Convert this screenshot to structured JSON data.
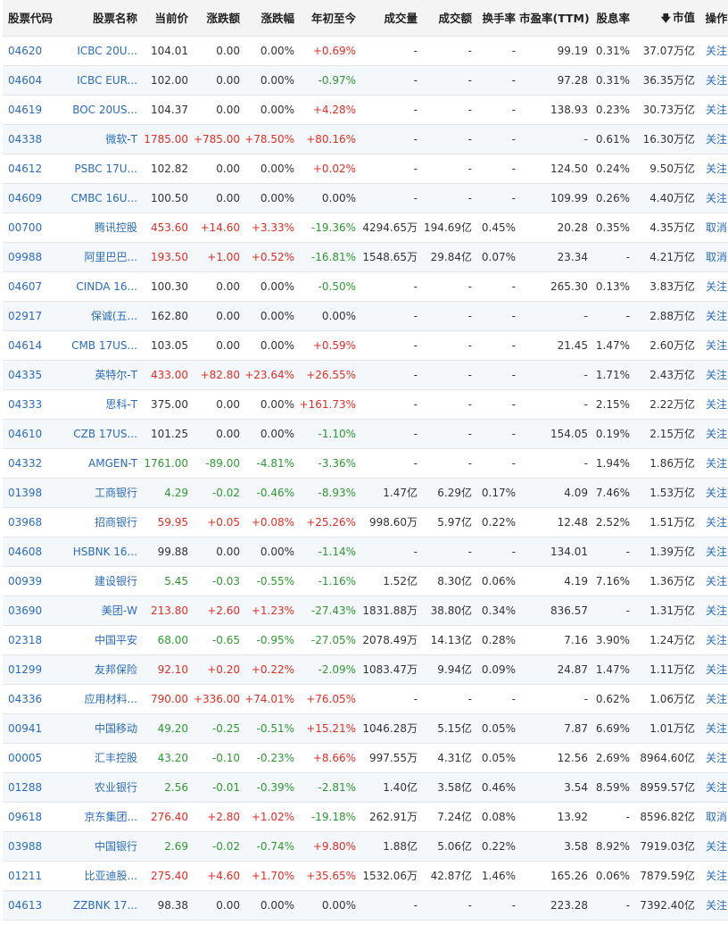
{
  "header": {
    "code": "股票代码",
    "name": "股票名称",
    "price": "当前价",
    "change": "涨跌额",
    "pct": "涨跌幅",
    "ytd": "年初至今",
    "volume": "成交量",
    "turnover": "成交额",
    "rate": "换手率",
    "pe": "市盈率(TTM)",
    "yield": "股息率",
    "mcap": "市值",
    "mcap_sort_icon": "arrow-down",
    "op": "操作"
  },
  "rows": [
    {
      "code": "04620",
      "name": "ICBC 20U...",
      "price": "104.01",
      "change": "0.00",
      "pct": "0.00%",
      "ytd": "+0.69%",
      "volume": "-",
      "turnover": "-",
      "rate": "-",
      "pe": "99.19",
      "yield": "0.31%",
      "mcap": "37.07万亿",
      "op": "关注",
      "price_dir": "flat",
      "change_dir": "flat",
      "pct_dir": "flat",
      "ytd_dir": "up"
    },
    {
      "code": "04604",
      "name": "ICBC EUR...",
      "price": "102.00",
      "change": "0.00",
      "pct": "0.00%",
      "ytd": "-0.97%",
      "volume": "-",
      "turnover": "-",
      "rate": "-",
      "pe": "97.28",
      "yield": "0.31%",
      "mcap": "36.35万亿",
      "op": "关注",
      "price_dir": "flat",
      "change_dir": "flat",
      "pct_dir": "flat",
      "ytd_dir": "down"
    },
    {
      "code": "04619",
      "name": "BOC 20US...",
      "price": "104.37",
      "change": "0.00",
      "pct": "0.00%",
      "ytd": "+4.28%",
      "volume": "-",
      "turnover": "-",
      "rate": "-",
      "pe": "138.93",
      "yield": "0.23%",
      "mcap": "30.73万亿",
      "op": "关注",
      "price_dir": "flat",
      "change_dir": "flat",
      "pct_dir": "flat",
      "ytd_dir": "up"
    },
    {
      "code": "04338",
      "name": "微软-T",
      "price": "1785.00",
      "change": "+785.00",
      "pct": "+78.50%",
      "ytd": "+80.16%",
      "volume": "-",
      "turnover": "-",
      "rate": "-",
      "pe": "-",
      "yield": "0.61%",
      "mcap": "16.30万亿",
      "op": "关注",
      "price_dir": "up",
      "change_dir": "up",
      "pct_dir": "up",
      "ytd_dir": "up"
    },
    {
      "code": "04612",
      "name": "PSBC 17U...",
      "price": "102.82",
      "change": "0.00",
      "pct": "0.00%",
      "ytd": "+0.02%",
      "volume": "-",
      "turnover": "-",
      "rate": "-",
      "pe": "124.50",
      "yield": "0.24%",
      "mcap": "9.50万亿",
      "op": "关注",
      "price_dir": "flat",
      "change_dir": "flat",
      "pct_dir": "flat",
      "ytd_dir": "up"
    },
    {
      "code": "04609",
      "name": "CMBC 16U...",
      "price": "100.50",
      "change": "0.00",
      "pct": "0.00%",
      "ytd": "0.00%",
      "volume": "-",
      "turnover": "-",
      "rate": "-",
      "pe": "109.99",
      "yield": "0.26%",
      "mcap": "4.40万亿",
      "op": "关注",
      "price_dir": "flat",
      "change_dir": "flat",
      "pct_dir": "flat",
      "ytd_dir": "flat"
    },
    {
      "code": "00700",
      "name": "腾讯控股",
      "price": "453.60",
      "change": "+14.60",
      "pct": "+3.33%",
      "ytd": "-19.36%",
      "volume": "4294.65万",
      "turnover": "194.69亿",
      "rate": "0.45%",
      "pe": "20.28",
      "yield": "0.35%",
      "mcap": "4.35万亿",
      "op": "取消",
      "price_dir": "up",
      "change_dir": "up",
      "pct_dir": "up",
      "ytd_dir": "down"
    },
    {
      "code": "09988",
      "name": "阿里巴巴...",
      "price": "193.50",
      "change": "+1.00",
      "pct": "+0.52%",
      "ytd": "-16.81%",
      "volume": "1548.65万",
      "turnover": "29.84亿",
      "rate": "0.07%",
      "pe": "23.34",
      "yield": "-",
      "mcap": "4.21万亿",
      "op": "取消",
      "price_dir": "up",
      "change_dir": "up",
      "pct_dir": "up",
      "ytd_dir": "down"
    },
    {
      "code": "04607",
      "name": "CINDA 16...",
      "price": "100.30",
      "change": "0.00",
      "pct": "0.00%",
      "ytd": "-0.50%",
      "volume": "-",
      "turnover": "-",
      "rate": "-",
      "pe": "265.30",
      "yield": "0.13%",
      "mcap": "3.83万亿",
      "op": "关注",
      "price_dir": "flat",
      "change_dir": "flat",
      "pct_dir": "flat",
      "ytd_dir": "down"
    },
    {
      "code": "02917",
      "name": "保诚(五...",
      "price": "162.80",
      "change": "0.00",
      "pct": "0.00%",
      "ytd": "0.00%",
      "volume": "-",
      "turnover": "-",
      "rate": "-",
      "pe": "-",
      "yield": "-",
      "mcap": "2.88万亿",
      "op": "关注",
      "price_dir": "flat",
      "change_dir": "flat",
      "pct_dir": "flat",
      "ytd_dir": "flat"
    },
    {
      "code": "04614",
      "name": "CMB 17US...",
      "price": "103.05",
      "change": "0.00",
      "pct": "0.00%",
      "ytd": "+0.59%",
      "volume": "-",
      "turnover": "-",
      "rate": "-",
      "pe": "21.45",
      "yield": "1.47%",
      "mcap": "2.60万亿",
      "op": "关注",
      "price_dir": "flat",
      "change_dir": "flat",
      "pct_dir": "flat",
      "ytd_dir": "up"
    },
    {
      "code": "04335",
      "name": "英特尔-T",
      "price": "433.00",
      "change": "+82.80",
      "pct": "+23.64%",
      "ytd": "+26.55%",
      "volume": "-",
      "turnover": "-",
      "rate": "-",
      "pe": "-",
      "yield": "1.71%",
      "mcap": "2.43万亿",
      "op": "关注",
      "price_dir": "up",
      "change_dir": "up",
      "pct_dir": "up",
      "ytd_dir": "up"
    },
    {
      "code": "04333",
      "name": "思科-T",
      "price": "375.00",
      "change": "0.00",
      "pct": "0.00%",
      "ytd": "+161.73%",
      "volume": "-",
      "turnover": "-",
      "rate": "-",
      "pe": "-",
      "yield": "2.15%",
      "mcap": "2.22万亿",
      "op": "关注",
      "price_dir": "flat",
      "change_dir": "flat",
      "pct_dir": "flat",
      "ytd_dir": "up"
    },
    {
      "code": "04610",
      "name": "CZB 17US...",
      "price": "101.25",
      "change": "0.00",
      "pct": "0.00%",
      "ytd": "-1.10%",
      "volume": "-",
      "turnover": "-",
      "rate": "-",
      "pe": "154.05",
      "yield": "0.19%",
      "mcap": "2.15万亿",
      "op": "关注",
      "price_dir": "flat",
      "change_dir": "flat",
      "pct_dir": "flat",
      "ytd_dir": "down"
    },
    {
      "code": "04332",
      "name": "AMGEN-T",
      "price": "1761.00",
      "change": "-89.00",
      "pct": "-4.81%",
      "ytd": "-3.36%",
      "volume": "-",
      "turnover": "-",
      "rate": "-",
      "pe": "-",
      "yield": "1.94%",
      "mcap": "1.86万亿",
      "op": "关注",
      "price_dir": "down",
      "change_dir": "down",
      "pct_dir": "down",
      "ytd_dir": "down"
    },
    {
      "code": "01398",
      "name": "工商银行",
      "price": "4.29",
      "change": "-0.02",
      "pct": "-0.46%",
      "ytd": "-8.93%",
      "volume": "1.47亿",
      "turnover": "6.29亿",
      "rate": "0.17%",
      "pe": "4.09",
      "yield": "7.46%",
      "mcap": "1.53万亿",
      "op": "关注",
      "price_dir": "down",
      "change_dir": "down",
      "pct_dir": "down",
      "ytd_dir": "down"
    },
    {
      "code": "03968",
      "name": "招商银行",
      "price": "59.95",
      "change": "+0.05",
      "pct": "+0.08%",
      "ytd": "+25.26%",
      "volume": "998.60万",
      "turnover": "5.97亿",
      "rate": "0.22%",
      "pe": "12.48",
      "yield": "2.52%",
      "mcap": "1.51万亿",
      "op": "关注",
      "price_dir": "up",
      "change_dir": "up",
      "pct_dir": "up",
      "ytd_dir": "up"
    },
    {
      "code": "04608",
      "name": "HSBNK 16...",
      "price": "99.88",
      "change": "0.00",
      "pct": "0.00%",
      "ytd": "-1.14%",
      "volume": "-",
      "turnover": "-",
      "rate": "-",
      "pe": "134.01",
      "yield": "-",
      "mcap": "1.39万亿",
      "op": "关注",
      "price_dir": "flat",
      "change_dir": "flat",
      "pct_dir": "flat",
      "ytd_dir": "down"
    },
    {
      "code": "00939",
      "name": "建设银行",
      "price": "5.45",
      "change": "-0.03",
      "pct": "-0.55%",
      "ytd": "-1.16%",
      "volume": "1.52亿",
      "turnover": "8.30亿",
      "rate": "0.06%",
      "pe": "4.19",
      "yield": "7.16%",
      "mcap": "1.36万亿",
      "op": "关注",
      "price_dir": "down",
      "change_dir": "down",
      "pct_dir": "down",
      "ytd_dir": "down"
    },
    {
      "code": "03690",
      "name": "美团-W",
      "price": "213.80",
      "change": "+2.60",
      "pct": "+1.23%",
      "ytd": "-27.43%",
      "volume": "1831.88万",
      "turnover": "38.80亿",
      "rate": "0.34%",
      "pe": "836.57",
      "yield": "-",
      "mcap": "1.31万亿",
      "op": "关注",
      "price_dir": "up",
      "change_dir": "up",
      "pct_dir": "up",
      "ytd_dir": "down"
    },
    {
      "code": "02318",
      "name": "中国平安",
      "price": "68.00",
      "change": "-0.65",
      "pct": "-0.95%",
      "ytd": "-27.05%",
      "volume": "2078.49万",
      "turnover": "14.13亿",
      "rate": "0.28%",
      "pe": "7.16",
      "yield": "3.90%",
      "mcap": "1.24万亿",
      "op": "关注",
      "price_dir": "down",
      "change_dir": "down",
      "pct_dir": "down",
      "ytd_dir": "down"
    },
    {
      "code": "01299",
      "name": "友邦保险",
      "price": "92.10",
      "change": "+0.20",
      "pct": "+0.22%",
      "ytd": "-2.09%",
      "volume": "1083.47万",
      "turnover": "9.94亿",
      "rate": "0.09%",
      "pe": "24.87",
      "yield": "1.47%",
      "mcap": "1.11万亿",
      "op": "关注",
      "price_dir": "up",
      "change_dir": "up",
      "pct_dir": "up",
      "ytd_dir": "down"
    },
    {
      "code": "04336",
      "name": "应用材料...",
      "price": "790.00",
      "change": "+336.00",
      "pct": "+74.01%",
      "ytd": "+76.05%",
      "volume": "-",
      "turnover": "-",
      "rate": "-",
      "pe": "-",
      "yield": "0.62%",
      "mcap": "1.06万亿",
      "op": "关注",
      "price_dir": "up",
      "change_dir": "up",
      "pct_dir": "up",
      "ytd_dir": "up"
    },
    {
      "code": "00941",
      "name": "中国移动",
      "price": "49.20",
      "change": "-0.25",
      "pct": "-0.51%",
      "ytd": "+15.21%",
      "volume": "1046.28万",
      "turnover": "5.15亿",
      "rate": "0.05%",
      "pe": "7.87",
      "yield": "6.69%",
      "mcap": "1.01万亿",
      "op": "关注",
      "price_dir": "down",
      "change_dir": "down",
      "pct_dir": "down",
      "ytd_dir": "up"
    },
    {
      "code": "00005",
      "name": "汇丰控股",
      "price": "43.20",
      "change": "-0.10",
      "pct": "-0.23%",
      "ytd": "+8.66%",
      "volume": "997.55万",
      "turnover": "4.31亿",
      "rate": "0.05%",
      "pe": "12.56",
      "yield": "2.69%",
      "mcap": "8964.60亿",
      "op": "关注",
      "price_dir": "down",
      "change_dir": "down",
      "pct_dir": "down",
      "ytd_dir": "up"
    },
    {
      "code": "01288",
      "name": "农业银行",
      "price": "2.56",
      "change": "-0.01",
      "pct": "-0.39%",
      "ytd": "-2.81%",
      "volume": "1.40亿",
      "turnover": "3.58亿",
      "rate": "0.46%",
      "pe": "3.54",
      "yield": "8.59%",
      "mcap": "8959.57亿",
      "op": "关注",
      "price_dir": "down",
      "change_dir": "down",
      "pct_dir": "down",
      "ytd_dir": "down"
    },
    {
      "code": "09618",
      "name": "京东集团...",
      "price": "276.40",
      "change": "+2.80",
      "pct": "+1.02%",
      "ytd": "-19.18%",
      "volume": "262.91万",
      "turnover": "7.24亿",
      "rate": "0.08%",
      "pe": "13.92",
      "yield": "-",
      "mcap": "8596.82亿",
      "op": "取消",
      "price_dir": "up",
      "change_dir": "up",
      "pct_dir": "up",
      "ytd_dir": "down"
    },
    {
      "code": "03988",
      "name": "中国银行",
      "price": "2.69",
      "change": "-0.02",
      "pct": "-0.74%",
      "ytd": "+9.80%",
      "volume": "1.88亿",
      "turnover": "5.06亿",
      "rate": "0.22%",
      "pe": "3.58",
      "yield": "8.92%",
      "mcap": "7919.03亿",
      "op": "关注",
      "price_dir": "down",
      "change_dir": "down",
      "pct_dir": "down",
      "ytd_dir": "up"
    },
    {
      "code": "01211",
      "name": "比亚迪股...",
      "price": "275.40",
      "change": "+4.60",
      "pct": "+1.70%",
      "ytd": "+35.65%",
      "volume": "1532.06万",
      "turnover": "42.87亿",
      "rate": "1.46%",
      "pe": "165.26",
      "yield": "0.06%",
      "mcap": "7879.59亿",
      "op": "关注",
      "price_dir": "up",
      "change_dir": "up",
      "pct_dir": "up",
      "ytd_dir": "up"
    },
    {
      "code": "04613",
      "name": "ZZBNK 17...",
      "price": "98.38",
      "change": "0.00",
      "pct": "0.00%",
      "ytd": "0.00%",
      "volume": "-",
      "turnover": "-",
      "rate": "-",
      "pe": "223.28",
      "yield": "-",
      "mcap": "7392.40亿",
      "op": "关注",
      "price_dir": "flat",
      "change_dir": "flat",
      "pct_dir": "flat",
      "ytd_dir": "flat"
    }
  ]
}
